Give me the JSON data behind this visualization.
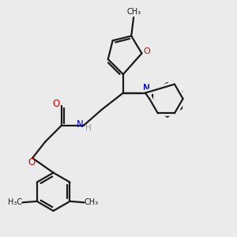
{
  "bg_color": "#ebebeb",
  "bond_color": "#1a1a1a",
  "o_color": "#cc0000",
  "n_color": "#0000cc",
  "h_color": "#999999",
  "line_width": 1.6,
  "figsize": [
    3.0,
    3.0
  ],
  "dpi": 100,
  "xlim": [
    0,
    10
  ],
  "ylim": [
    0,
    10
  ]
}
